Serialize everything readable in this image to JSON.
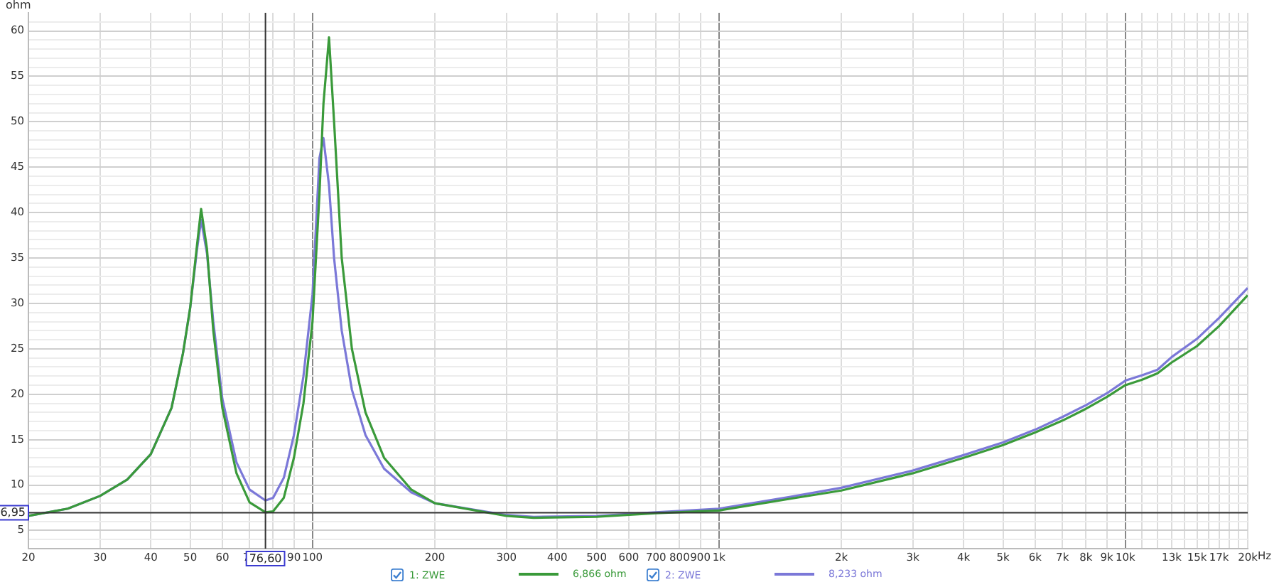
{
  "chart_data": {
    "type": "line",
    "ylabel": "ohm",
    "log": "x",
    "grid": true,
    "legend": "bottom",
    "marker": "none",
    "line_style": "solid",
    "xlim": [
      20,
      20000
    ],
    "ylim": [
      3,
      62
    ],
    "xticks": [
      20,
      30,
      40,
      50,
      60,
      70,
      {
        "value": 80,
        "label": null
      },
      90,
      100,
      200,
      300,
      400,
      500,
      600,
      700,
      800,
      900,
      {
        "value": 1000,
        "label": "1k"
      },
      {
        "value": 2000,
        "label": "2k"
      },
      {
        "value": 3000,
        "label": "3k"
      },
      {
        "value": 4000,
        "label": "4k"
      },
      {
        "value": 5000,
        "label": "5k"
      },
      {
        "value": 6000,
        "label": "6k"
      },
      {
        "value": 7000,
        "label": "7k"
      },
      {
        "value": 8000,
        "label": "8k"
      },
      {
        "value": 9000,
        "label": "9k"
      },
      {
        "value": 10000,
        "label": "10k"
      },
      {
        "value": 11000,
        "label": null
      },
      {
        "value": 12000,
        "label": null
      },
      {
        "value": 13000,
        "label": "13k"
      },
      {
        "value": 14000,
        "label": null
      },
      {
        "value": 15000,
        "label": "15k"
      },
      {
        "value": 16000,
        "label": null
      },
      {
        "value": 17000,
        "label": "17k"
      },
      {
        "value": 18000,
        "label": null
      },
      {
        "value": 19000,
        "label": null
      },
      {
        "value": 20000,
        "label": "20k"
      }
    ],
    "xlabel": "Hz",
    "yticks": [
      {
        "value": 4,
        "label": null
      },
      5,
      {
        "value": 6,
        "label": null
      },
      {
        "value": 7,
        "label": null
      },
      {
        "value": 8,
        "label": null
      },
      {
        "value": 9,
        "label": null
      },
      10,
      {
        "value": 11,
        "label": null
      },
      {
        "value": 12,
        "label": null
      },
      {
        "value": 13,
        "label": null
      },
      {
        "value": 14,
        "label": null
      },
      15,
      {
        "value": 16,
        "label": null
      },
      {
        "value": 17,
        "label": null
      },
      {
        "value": 18,
        "label": null
      },
      {
        "value": 19,
        "label": null
      },
      20,
      {
        "value": 21,
        "label": null
      },
      {
        "value": 22,
        "label": null
      },
      {
        "value": 23,
        "label": null
      },
      {
        "value": 24,
        "label": null
      },
      25,
      {
        "value": 26,
        "label": null
      },
      {
        "value": 27,
        "label": null
      },
      {
        "value": 28,
        "label": null
      },
      {
        "value": 29,
        "label": null
      },
      30,
      {
        "value": 31,
        "label": null
      },
      {
        "value": 32,
        "label": null
      },
      {
        "value": 33,
        "label": null
      },
      {
        "value": 34,
        "label": null
      },
      35,
      {
        "value": 36,
        "label": null
      },
      {
        "value": 37,
        "label": null
      },
      {
        "value": 38,
        "label": null
      },
      {
        "value": 39,
        "label": null
      },
      40,
      {
        "value": 41,
        "label": null
      },
      {
        "value": 42,
        "label": null
      },
      {
        "value": 43,
        "label": null
      },
      {
        "value": 44,
        "label": null
      },
      45,
      {
        "value": 46,
        "label": null
      },
      {
        "value": 47,
        "label": null
      },
      {
        "value": 48,
        "label": null
      },
      {
        "value": 49,
        "label": null
      },
      50,
      {
        "value": 51,
        "label": null
      },
      {
        "value": 52,
        "label": null
      },
      {
        "value": 53,
        "label": null
      },
      {
        "value": 54,
        "label": null
      },
      55,
      {
        "value": 56,
        "label": null
      },
      {
        "value": 57,
        "label": null
      },
      {
        "value": 58,
        "label": null
      },
      {
        "value": 59,
        "label": null
      },
      60,
      {
        "value": 61,
        "label": null
      }
    ],
    "x": [
      20,
      25,
      30,
      35,
      40,
      45,
      48,
      50,
      52,
      53.2,
      55,
      57,
      60,
      65,
      70,
      76.6,
      80,
      85,
      90,
      95,
      100,
      104,
      106.4,
      109.8,
      113,
      118,
      125,
      135,
      150,
      175,
      200,
      300,
      350,
      500,
      700,
      1000,
      1500,
      2000,
      3000,
      4000,
      5000,
      6000,
      7000,
      8000,
      9000,
      10000,
      11000,
      12000,
      13000,
      15000,
      17000,
      20000
    ],
    "series": [
      {
        "name": "1: ZWE",
        "color": "#3a9a3a",
        "values": [
          6.6,
          7.4,
          8.8,
          10.6,
          13.4,
          18.5,
          24.5,
          29.5,
          36.5,
          40.4,
          36,
          27,
          18.5,
          11.3,
          8.1,
          7.0,
          7.1,
          8.6,
          13,
          19,
          28,
          42,
          52,
          59.3,
          50,
          35,
          25,
          18,
          13,
          9.5,
          8.0,
          6.6,
          6.4,
          6.5,
          6.9,
          7.2,
          8.5,
          9.4,
          11.3,
          13.0,
          14.4,
          15.8,
          17.1,
          18.4,
          19.7,
          21.0,
          21.6,
          22.3,
          23.5,
          25.3,
          27.5,
          30.9
        ]
      },
      {
        "name": "2: ZWE",
        "color": "#7b78d8",
        "values": [
          6.6,
          7.4,
          8.8,
          10.6,
          13.4,
          18.5,
          24.5,
          29.5,
          36,
          39.2,
          35.5,
          28,
          19.5,
          12.5,
          9.5,
          8.3,
          8.6,
          10.8,
          15.5,
          22,
          31,
          46,
          48.2,
          43,
          35,
          27,
          20.5,
          15.5,
          11.8,
          9.2,
          8.0,
          6.7,
          6.5,
          6.6,
          7.0,
          7.4,
          8.7,
          9.7,
          11.6,
          13.3,
          14.7,
          16.1,
          17.5,
          18.8,
          20.1,
          21.5,
          22.1,
          22.7,
          24.1,
          26.1,
          28.4,
          31.7
        ]
      }
    ],
    "ref_lines": [
      {
        "axis": "x",
        "value": 76.6,
        "label": "76,60",
        "color": "#333333"
      },
      {
        "axis": "y",
        "value": 6.95,
        "label": "6,95",
        "color": "#333333"
      }
    ],
    "annotations": [
      "6,866 ohm",
      "8,233 ohm"
    ]
  }
}
